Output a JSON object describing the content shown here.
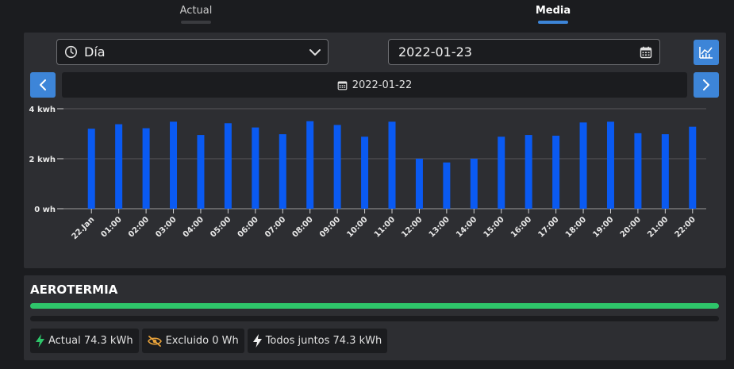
{
  "tabs": [
    {
      "label": "Actual"
    },
    {
      "label": "Media"
    }
  ],
  "controls": {
    "period_select": "Día",
    "date_value": "2022-01-23",
    "range_date": "2022-01-22"
  },
  "colors": {
    "accent": "#3d85d8",
    "bar": "#0a5af2",
    "progress": "#2ec56a",
    "excluded_icon": "#e8a23a"
  },
  "chart_data": {
    "type": "bar",
    "categories": [
      "22.Jan",
      "01:00",
      "02:00",
      "03:00",
      "04:00",
      "05:00",
      "06:00",
      "07:00",
      "08:00",
      "09:00",
      "10:00",
      "11:00",
      "12:00",
      "13:00",
      "14:00",
      "15:00",
      "16:00",
      "17:00",
      "18:00",
      "19:00",
      "20:00",
      "21:00",
      "22:00"
    ],
    "values": [
      3.2,
      3.38,
      3.22,
      3.48,
      2.95,
      3.42,
      3.25,
      2.98,
      3.5,
      3.35,
      2.88,
      3.48,
      2.0,
      1.85,
      2.0,
      2.88,
      2.95,
      2.92,
      3.45,
      3.48,
      3.02,
      2.98,
      3.28
    ],
    "yticks": [
      "0 wh",
      "2 kwh",
      "4 kwh"
    ],
    "ylim": [
      0,
      4
    ],
    "grid": true
  },
  "summary": {
    "title": "AEROTERMIA",
    "progress_fraction": 1.0,
    "chips": [
      {
        "label": "Actual 74.3 kWh",
        "icon": "bolt-green-icon"
      },
      {
        "label": "Excluido 0 Wh",
        "icon": "eye-slash-icon"
      },
      {
        "label": "Todos juntos 74.3 kWh",
        "icon": "bolt-white-icon"
      }
    ]
  }
}
